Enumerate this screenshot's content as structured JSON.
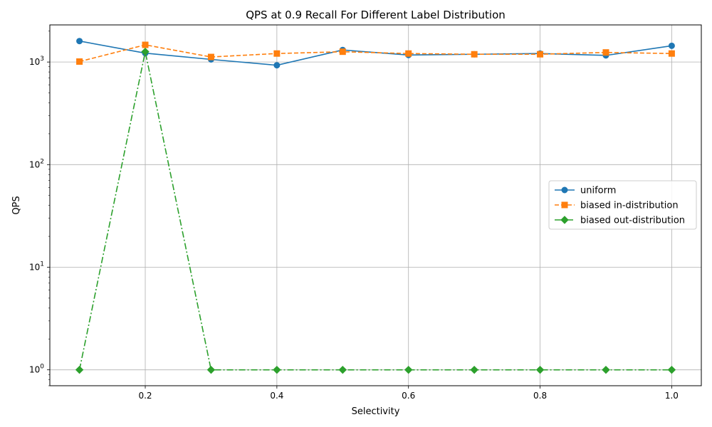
{
  "chart_data": {
    "type": "line",
    "title": "QPS at 0.9 Recall For Different Label Distribution",
    "xlabel": "Selectivity",
    "ylabel": "QPS",
    "yscale": "log",
    "xlim": [
      0.055,
      1.045
    ],
    "ylim": [
      0.7,
      2300
    ],
    "grid": true,
    "legend_position": "center-right",
    "x_ticks": [
      0.2,
      0.4,
      0.6,
      0.8,
      1.0
    ],
    "x_tick_labels": [
      "0.2",
      "0.4",
      "0.6",
      "0.8",
      "1.0"
    ],
    "y_ticks": [
      1,
      10,
      100,
      1000
    ],
    "y_tick_labels": [
      {
        "base": "10",
        "exp": "0"
      },
      {
        "base": "10",
        "exp": "1"
      },
      {
        "base": "10",
        "exp": "2"
      },
      {
        "base": "10",
        "exp": "3"
      }
    ],
    "x": [
      0.1,
      0.2,
      0.3,
      0.4,
      0.5,
      0.6,
      0.7,
      0.8,
      0.9,
      1.0
    ],
    "series": [
      {
        "name": "uniform",
        "values": [
          1600,
          1220,
          1060,
          930,
          1310,
          1170,
          1190,
          1210,
          1160,
          1440
        ],
        "color": "#1f77b4",
        "dash": "solid",
        "marker": "circle"
      },
      {
        "name": "biased in-distribution",
        "values": [
          1010,
          1470,
          1120,
          1210,
          1260,
          1210,
          1190,
          1190,
          1240,
          1210
        ],
        "color": "#ff7f0e",
        "dash": "dashed",
        "marker": "square"
      },
      {
        "name": "biased out-distribution",
        "values": [
          1,
          1260,
          1,
          1,
          1,
          1,
          1,
          1,
          1,
          1
        ],
        "color": "#2ca02c",
        "dash": "dashdot",
        "marker": "diamond"
      }
    ]
  }
}
